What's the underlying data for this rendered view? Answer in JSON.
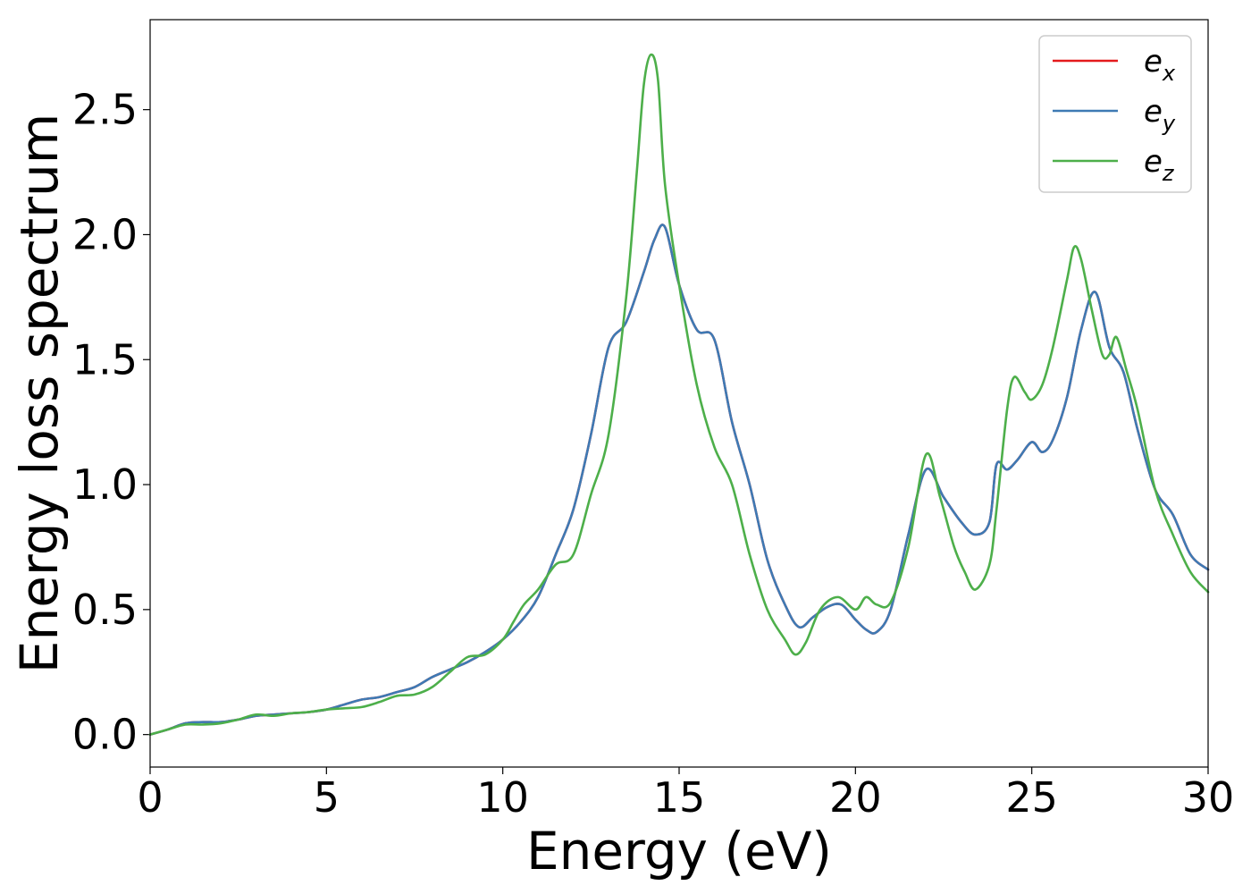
{
  "chart_data": {
    "type": "line",
    "title": "",
    "xlabel": "Energy (eV)",
    "ylabel": "Energy loss spectrum",
    "xlim": [
      0,
      30
    ],
    "ylim": [
      -0.13,
      2.86
    ],
    "xticks": [
      0,
      5,
      10,
      15,
      20,
      25,
      30
    ],
    "yticks": [
      0.0,
      0.5,
      1.0,
      1.5,
      2.0,
      2.5
    ],
    "xtick_labels": [
      "0",
      "5",
      "10",
      "15",
      "20",
      "25",
      "30"
    ],
    "ytick_labels": [
      "0.0",
      "0.5",
      "1.0",
      "1.5",
      "2.0",
      "2.5"
    ],
    "grid": false,
    "legend_position": "top-right",
    "series": [
      {
        "name": "e_x",
        "legend_base": "e",
        "legend_sub": "x",
        "color": "#e41a1c",
        "x": [
          0,
          0.5,
          1,
          1.5,
          2,
          2.5,
          3,
          3.5,
          4,
          4.5,
          5,
          5.5,
          6,
          6.5,
          7,
          7.5,
          8,
          8.5,
          9,
          9.5,
          10,
          10.5,
          11,
          11.5,
          12,
          12.5,
          13,
          13.5,
          14,
          14.3,
          14.6,
          15,
          15.5,
          16,
          16.5,
          17,
          17.5,
          18,
          18.4,
          18.8,
          19.2,
          19.6,
          20,
          20.3,
          20.6,
          21,
          21.5,
          22,
          22.5,
          23,
          23.4,
          23.8,
          24,
          24.3,
          24.6,
          25,
          25.3,
          25.6,
          26,
          26.4,
          26.8,
          27.2,
          27.6,
          28,
          28.5,
          29,
          29.5,
          30
        ],
        "y": [
          0,
          0.02,
          0.045,
          0.05,
          0.05,
          0.06,
          0.075,
          0.08,
          0.085,
          0.09,
          0.1,
          0.12,
          0.14,
          0.15,
          0.17,
          0.19,
          0.23,
          0.26,
          0.29,
          0.33,
          0.38,
          0.45,
          0.55,
          0.72,
          0.9,
          1.2,
          1.55,
          1.65,
          1.85,
          1.98,
          2.03,
          1.8,
          1.62,
          1.58,
          1.25,
          1.0,
          0.7,
          0.52,
          0.43,
          0.47,
          0.51,
          0.52,
          0.46,
          0.42,
          0.41,
          0.5,
          0.8,
          1.06,
          0.95,
          0.85,
          0.8,
          0.85,
          1.08,
          1.06,
          1.1,
          1.17,
          1.13,
          1.18,
          1.35,
          1.62,
          1.77,
          1.55,
          1.45,
          1.22,
          0.98,
          0.88,
          0.72,
          0.66
        ]
      },
      {
        "name": "e_y",
        "legend_base": "e",
        "legend_sub": "y",
        "color": "#3e7ab4",
        "x": [
          0,
          0.5,
          1,
          1.5,
          2,
          2.5,
          3,
          3.5,
          4,
          4.5,
          5,
          5.5,
          6,
          6.5,
          7,
          7.5,
          8,
          8.5,
          9,
          9.5,
          10,
          10.5,
          11,
          11.5,
          12,
          12.5,
          13,
          13.5,
          14,
          14.3,
          14.6,
          15,
          15.5,
          16,
          16.5,
          17,
          17.5,
          18,
          18.4,
          18.8,
          19.2,
          19.6,
          20,
          20.3,
          20.6,
          21,
          21.5,
          22,
          22.5,
          23,
          23.4,
          23.8,
          24,
          24.3,
          24.6,
          25,
          25.3,
          25.6,
          26,
          26.4,
          26.8,
          27.2,
          27.6,
          28,
          28.5,
          29,
          29.5,
          30
        ],
        "y": [
          0,
          0.02,
          0.045,
          0.05,
          0.05,
          0.06,
          0.075,
          0.08,
          0.085,
          0.09,
          0.1,
          0.12,
          0.14,
          0.15,
          0.17,
          0.19,
          0.23,
          0.26,
          0.29,
          0.33,
          0.38,
          0.45,
          0.55,
          0.72,
          0.9,
          1.2,
          1.55,
          1.65,
          1.85,
          1.98,
          2.03,
          1.8,
          1.62,
          1.58,
          1.25,
          1.0,
          0.7,
          0.52,
          0.43,
          0.47,
          0.51,
          0.52,
          0.46,
          0.42,
          0.41,
          0.5,
          0.8,
          1.06,
          0.95,
          0.85,
          0.8,
          0.85,
          1.08,
          1.06,
          1.1,
          1.17,
          1.13,
          1.18,
          1.35,
          1.62,
          1.77,
          1.55,
          1.45,
          1.22,
          0.98,
          0.88,
          0.72,
          0.66
        ]
      },
      {
        "name": "e_z",
        "legend_base": "e",
        "legend_sub": "z",
        "color": "#4daf4a",
        "x": [
          0,
          0.5,
          1,
          1.5,
          2,
          2.5,
          3,
          3.5,
          4,
          4.5,
          5,
          5.5,
          6,
          6.5,
          7,
          7.5,
          8,
          8.5,
          9,
          9.5,
          10,
          10.3,
          10.6,
          11,
          11.5,
          12,
          12.5,
          13,
          13.5,
          13.8,
          14,
          14.2,
          14.4,
          14.6,
          15,
          15.5,
          16,
          16.5,
          17,
          17.5,
          18,
          18.3,
          18.6,
          19,
          19.5,
          20,
          20.3,
          20.6,
          21,
          21.5,
          22,
          22.4,
          22.8,
          23.1,
          23.4,
          23.8,
          24,
          24.3,
          24.5,
          24.8,
          25,
          25.3,
          25.6,
          26,
          26.2,
          26.4,
          26.7,
          27,
          27.2,
          27.4,
          27.7,
          28,
          28.5,
          29,
          29.5,
          30
        ],
        "y": [
          0,
          0.02,
          0.04,
          0.04,
          0.045,
          0.06,
          0.08,
          0.075,
          0.085,
          0.09,
          0.1,
          0.105,
          0.11,
          0.13,
          0.155,
          0.16,
          0.19,
          0.25,
          0.31,
          0.32,
          0.38,
          0.45,
          0.52,
          0.58,
          0.68,
          0.72,
          0.96,
          1.2,
          1.75,
          2.25,
          2.6,
          2.72,
          2.62,
          2.2,
          1.8,
          1.4,
          1.15,
          1.0,
          0.72,
          0.5,
          0.38,
          0.32,
          0.37,
          0.5,
          0.55,
          0.5,
          0.55,
          0.52,
          0.53,
          0.75,
          1.12,
          0.95,
          0.75,
          0.65,
          0.58,
          0.68,
          0.9,
          1.3,
          1.43,
          1.37,
          1.34,
          1.4,
          1.55,
          1.82,
          1.95,
          1.9,
          1.7,
          1.52,
          1.52,
          1.59,
          1.45,
          1.3,
          0.98,
          0.8,
          0.65,
          0.57
        ]
      }
    ]
  }
}
